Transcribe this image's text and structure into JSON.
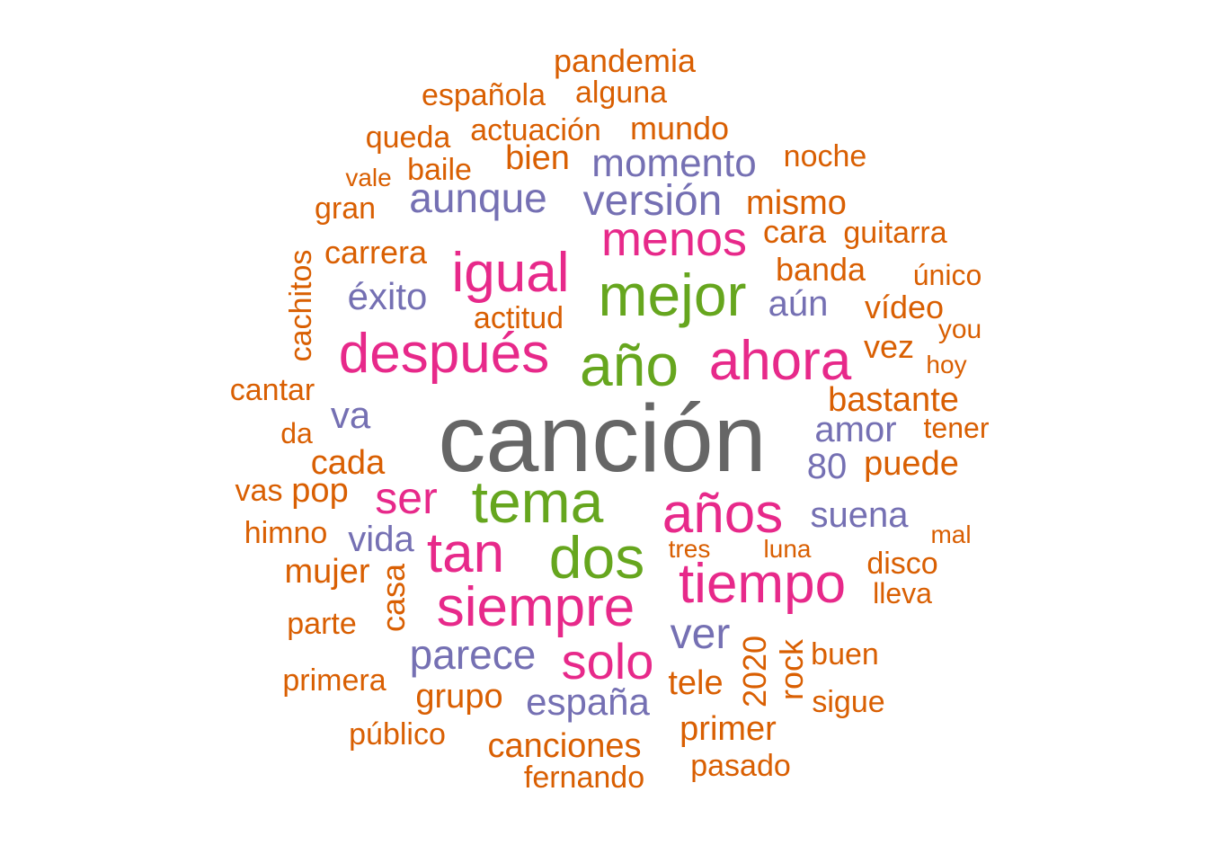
{
  "palette": {
    "gray": "#666666",
    "green": "#66a61e",
    "pink": "#e7298a",
    "purple": "#7570b3",
    "orange": "#d95f02"
  },
  "words": [
    {
      "text": "canción",
      "weight": 10,
      "color": "gray"
    },
    {
      "text": "año",
      "weight": 6,
      "color": "green"
    },
    {
      "text": "tema",
      "weight": 6,
      "color": "green"
    },
    {
      "text": "dos",
      "weight": 6,
      "color": "green"
    },
    {
      "text": "mejor",
      "weight": 6,
      "color": "green"
    },
    {
      "text": "después",
      "weight": 5,
      "color": "pink"
    },
    {
      "text": "siempre",
      "weight": 5,
      "color": "pink"
    },
    {
      "text": "tiempo",
      "weight": 5,
      "color": "pink"
    },
    {
      "text": "igual",
      "weight": 5,
      "color": "pink"
    },
    {
      "text": "ahora",
      "weight": 5,
      "color": "pink"
    },
    {
      "text": "años",
      "weight": 5,
      "color": "pink"
    },
    {
      "text": "tan",
      "weight": 5,
      "color": "pink"
    },
    {
      "text": "menos",
      "weight": 4,
      "color": "pink"
    },
    {
      "text": "ser",
      "weight": 4,
      "color": "pink"
    },
    {
      "text": "solo",
      "weight": 4,
      "color": "pink"
    },
    {
      "text": "versión",
      "weight": 3,
      "color": "purple"
    },
    {
      "text": "momento",
      "weight": 3,
      "color": "purple"
    },
    {
      "text": "aunque",
      "weight": 3,
      "color": "purple"
    },
    {
      "text": "parece",
      "weight": 3,
      "color": "purple"
    },
    {
      "text": "ver",
      "weight": 3,
      "color": "purple"
    },
    {
      "text": "españa",
      "weight": 3,
      "color": "purple"
    },
    {
      "text": "éxito",
      "weight": 3,
      "color": "purple"
    },
    {
      "text": "aún",
      "weight": 3,
      "color": "purple"
    },
    {
      "text": "va",
      "weight": 3,
      "color": "purple"
    },
    {
      "text": "amor",
      "weight": 3,
      "color": "purple"
    },
    {
      "text": "80",
      "weight": 3,
      "color": "purple"
    },
    {
      "text": "suena",
      "weight": 3,
      "color": "purple"
    },
    {
      "text": "vida",
      "weight": 3,
      "color": "purple"
    },
    {
      "text": "pandemia",
      "weight": 2,
      "color": "orange"
    },
    {
      "text": "española",
      "weight": 2,
      "color": "orange"
    },
    {
      "text": "alguna",
      "weight": 2,
      "color": "orange"
    },
    {
      "text": "queda",
      "weight": 2,
      "color": "orange"
    },
    {
      "text": "actuación",
      "weight": 2,
      "color": "orange"
    },
    {
      "text": "mundo",
      "weight": 2,
      "color": "orange"
    },
    {
      "text": "noche",
      "weight": 2,
      "color": "orange"
    },
    {
      "text": "vale",
      "weight": 1,
      "color": "orange"
    },
    {
      "text": "baile",
      "weight": 2,
      "color": "orange"
    },
    {
      "text": "bien",
      "weight": 2,
      "color": "orange"
    },
    {
      "text": "gran",
      "weight": 2,
      "color": "orange"
    },
    {
      "text": "mismo",
      "weight": 2,
      "color": "orange"
    },
    {
      "text": "cara",
      "weight": 2,
      "color": "orange"
    },
    {
      "text": "guitarra",
      "weight": 2,
      "color": "orange"
    },
    {
      "text": "carrera",
      "weight": 2,
      "color": "orange"
    },
    {
      "text": "cachitos",
      "weight": 2,
      "color": "orange"
    },
    {
      "text": "banda",
      "weight": 2,
      "color": "orange"
    },
    {
      "text": "único",
      "weight": 2,
      "color": "orange"
    },
    {
      "text": "actitud",
      "weight": 2,
      "color": "orange"
    },
    {
      "text": "vídeo",
      "weight": 2,
      "color": "orange"
    },
    {
      "text": "you",
      "weight": 1,
      "color": "orange"
    },
    {
      "text": "vez",
      "weight": 2,
      "color": "orange"
    },
    {
      "text": "hoy",
      "weight": 1,
      "color": "orange"
    },
    {
      "text": "cantar",
      "weight": 2,
      "color": "orange"
    },
    {
      "text": "bastante",
      "weight": 2,
      "color": "orange"
    },
    {
      "text": "da",
      "weight": 1,
      "color": "orange"
    },
    {
      "text": "tener",
      "weight": 2,
      "color": "orange"
    },
    {
      "text": "cada",
      "weight": 2,
      "color": "orange"
    },
    {
      "text": "puede",
      "weight": 2,
      "color": "orange"
    },
    {
      "text": "vas",
      "weight": 2,
      "color": "orange"
    },
    {
      "text": "pop",
      "weight": 2,
      "color": "orange"
    },
    {
      "text": "himno",
      "weight": 2,
      "color": "orange"
    },
    {
      "text": "mal",
      "weight": 1,
      "color": "orange"
    },
    {
      "text": "tres",
      "weight": 1,
      "color": "orange"
    },
    {
      "text": "luna",
      "weight": 1,
      "color": "orange"
    },
    {
      "text": "mujer",
      "weight": 2,
      "color": "orange"
    },
    {
      "text": "casa",
      "weight": 2,
      "color": "orange"
    },
    {
      "text": "disco",
      "weight": 2,
      "color": "orange"
    },
    {
      "text": "lleva",
      "weight": 2,
      "color": "orange"
    },
    {
      "text": "parte",
      "weight": 2,
      "color": "orange"
    },
    {
      "text": "2020",
      "weight": 2,
      "color": "orange"
    },
    {
      "text": "rock",
      "weight": 2,
      "color": "orange"
    },
    {
      "text": "buen",
      "weight": 2,
      "color": "orange"
    },
    {
      "text": "primera",
      "weight": 2,
      "color": "orange"
    },
    {
      "text": "tele",
      "weight": 2,
      "color": "orange"
    },
    {
      "text": "grupo",
      "weight": 2,
      "color": "orange"
    },
    {
      "text": "sigue",
      "weight": 2,
      "color": "orange"
    },
    {
      "text": "público",
      "weight": 2,
      "color": "orange"
    },
    {
      "text": "primer",
      "weight": 2,
      "color": "orange"
    },
    {
      "text": "canciones",
      "weight": 2,
      "color": "orange"
    },
    {
      "text": "pasado",
      "weight": 2,
      "color": "orange"
    },
    {
      "text": "fernando",
      "weight": 2,
      "color": "orange"
    }
  ]
}
